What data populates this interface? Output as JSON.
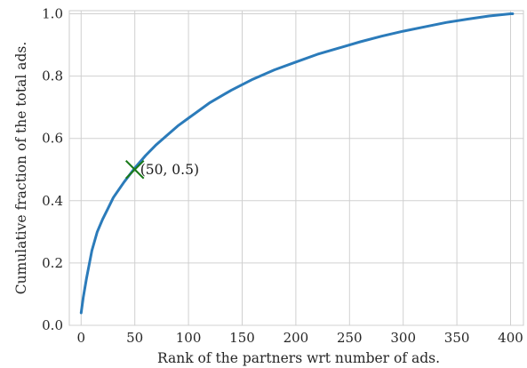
{
  "chart_data": {
    "type": "line",
    "title": "",
    "xlabel": "Rank of the partners wrt number of ads.",
    "ylabel": "Cumulative fraction of the total ads.",
    "xlim": [
      -11,
      412
    ],
    "ylim": [
      0.0,
      1.01
    ],
    "xticks": [
      0,
      50,
      100,
      150,
      200,
      250,
      300,
      350,
      400
    ],
    "yticks": [
      0.0,
      0.2,
      0.4,
      0.6,
      0.8,
      1.0
    ],
    "xtick_labels": [
      "0",
      "50",
      "100",
      "150",
      "200",
      "250",
      "300",
      "350",
      "400"
    ],
    "ytick_labels": [
      "0.0",
      "0.2",
      "0.4",
      "0.6",
      "0.8",
      "1.0"
    ],
    "grid": true,
    "line_color": "#2b7bba",
    "series": [
      {
        "x": [
          0,
          2,
          5,
          10,
          15,
          20,
          25,
          30,
          40,
          50,
          60,
          70,
          80,
          90,
          100,
          120,
          140,
          160,
          180,
          200,
          220,
          240,
          260,
          280,
          300,
          320,
          340,
          360,
          380,
          400,
          402
        ],
        "values": [
          0.04,
          0.09,
          0.15,
          0.24,
          0.3,
          0.34,
          0.375,
          0.41,
          0.46,
          0.505,
          0.545,
          0.58,
          0.61,
          0.64,
          0.665,
          0.715,
          0.755,
          0.79,
          0.82,
          0.845,
          0.87,
          0.89,
          0.91,
          0.928,
          0.944,
          0.958,
          0.972,
          0.983,
          0.993,
          1.0,
          1.0
        ]
      }
    ],
    "annotation": {
      "x": 50,
      "y": 0.5,
      "label": "(50, 0.5)",
      "marker": "x",
      "color": "#1a7a1a"
    }
  }
}
